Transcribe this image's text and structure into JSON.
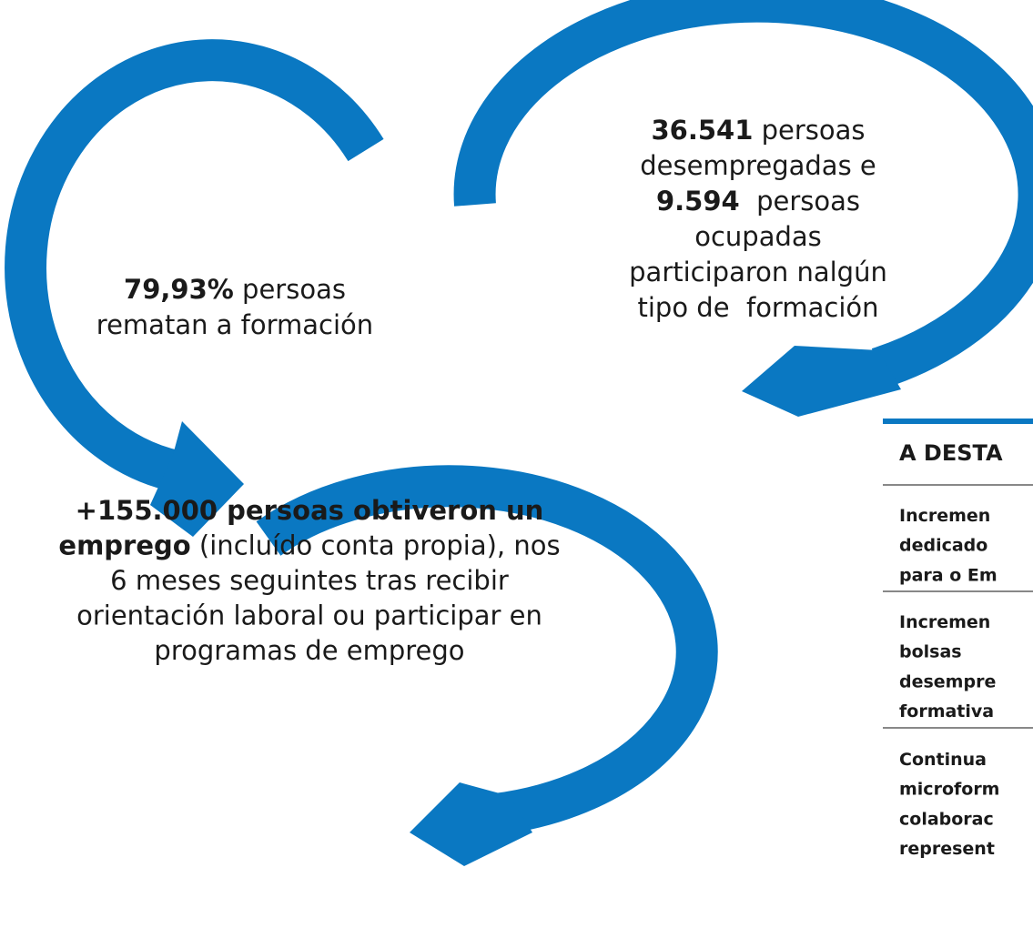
{
  "blocks": [
    {
      "lines": [
        [
          {
            "text": "36.541",
            "bold": true
          },
          {
            "text": " persoas",
            "bold": false
          }
        ],
        [
          {
            "text": "desempregadas e",
            "bold": false
          }
        ],
        [
          {
            "text": "9.594",
            "bold": true
          },
          {
            "text": "  persoas",
            "bold": false
          }
        ],
        [
          {
            "text": "ocupadas",
            "bold": false
          }
        ],
        [
          {
            "text": "participaron nalgún",
            "bold": false
          }
        ],
        [
          {
            "text": "tipo de  formación",
            "bold": false
          }
        ]
      ]
    },
    {
      "lines": [
        [
          {
            "text": "79,93%",
            "bold": true
          },
          {
            "text": " persoas",
            "bold": false
          }
        ],
        [
          {
            "text": "rematan a formación",
            "bold": false
          }
        ]
      ]
    },
    {
      "lines": [
        [
          {
            "text": "+155.000 persoas obtiveron un",
            "bold": true
          }
        ],
        [
          {
            "text": "emprego",
            "bold": true
          },
          {
            "text": " (incluído conta propia), nos",
            "bold": false
          }
        ],
        [
          {
            "text": "6 meses seguintes tras recibir",
            "bold": false
          }
        ],
        [
          {
            "text": "orientación laboral ou participar en",
            "bold": false
          }
        ],
        [
          {
            "text": "programas de emprego",
            "bold": false
          }
        ]
      ]
    }
  ],
  "panel": {
    "title": "A DESTA",
    "items": [
      [
        "Incremen",
        "dedicado",
        "para o Em"
      ],
      [
        "Incremen",
        "bolsas",
        "desempre",
        "formativa"
      ],
      [
        "Continua",
        "microform",
        "colaborac",
        "represent"
      ]
    ]
  }
}
